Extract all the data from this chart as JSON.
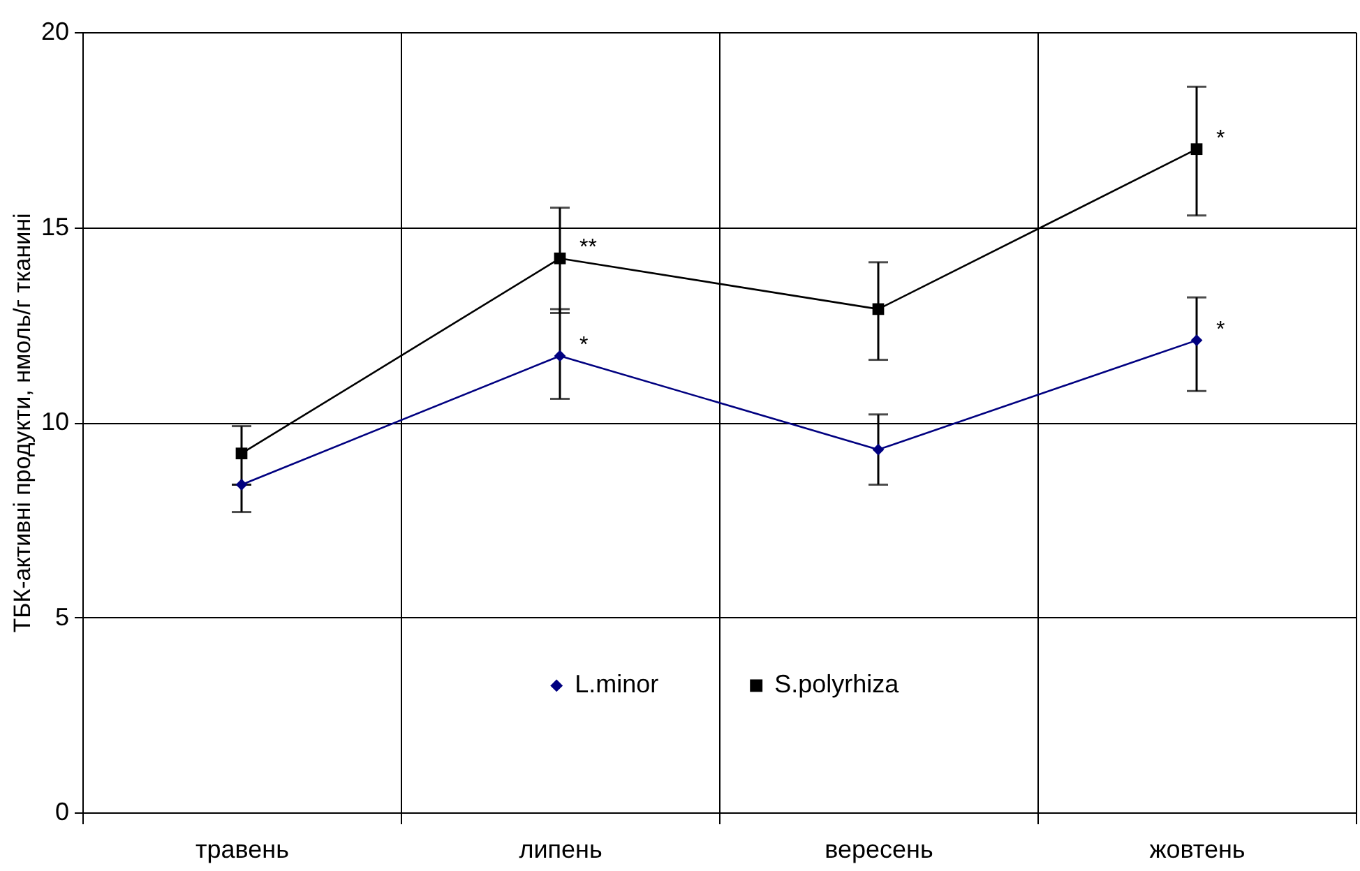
{
  "chart_data": {
    "type": "line",
    "ylabel": "ТБК-активні продукти, нмоль/г тканині",
    "categories": [
      "травень",
      "липень",
      "вересень",
      "жовтень"
    ],
    "series": [
      {
        "name": "L.minor",
        "color": "#000080",
        "marker": "diamond",
        "values": [
          8.4,
          11.7,
          9.3,
          12.1
        ],
        "errors": [
          [
            7.7,
            8.4
          ],
          [
            10.6,
            12.9
          ],
          [
            8.4,
            10.2
          ],
          [
            10.8,
            13.2
          ]
        ]
      },
      {
        "name": "S.polyrhiza",
        "color": "#000000",
        "marker": "square",
        "values": [
          9.2,
          14.2,
          12.9,
          17.0
        ],
        "errors": [
          [
            8.4,
            9.9
          ],
          [
            12.8,
            15.5
          ],
          [
            11.6,
            14.1
          ],
          [
            15.3,
            18.6
          ]
        ]
      }
    ],
    "annotations": [
      {
        "text": "*",
        "x": "липень",
        "y": 11.7
      },
      {
        "text": "**",
        "x": "липень",
        "y": 14.2
      },
      {
        "text": "*",
        "x": "жовтень",
        "y": 12.1
      },
      {
        "text": "*",
        "x": "жовтень",
        "y": 17.0
      }
    ],
    "ylim": [
      0,
      20
    ],
    "yticks": [
      0,
      5,
      10,
      15,
      20
    ],
    "grid": true,
    "legend": "bottom"
  }
}
